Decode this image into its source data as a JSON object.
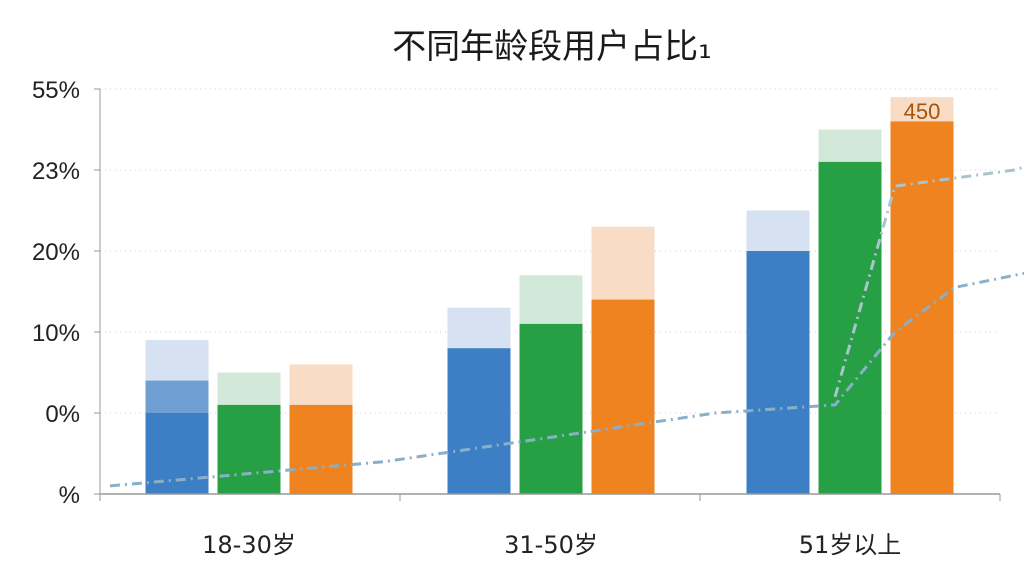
{
  "chart_data": {
    "type": "bar",
    "title": "不同年龄段用户占比₁",
    "xlabel": "",
    "ylabel": "",
    "y_tick_labels": [
      "%",
      "0%",
      "10%",
      "20%",
      "23%",
      "55%"
    ],
    "categories": [
      "18-30岁",
      "31-50岁",
      "51岁以上"
    ],
    "grid": true,
    "legend": "none",
    "series": [
      {
        "color": "#3d7fc4",
        "light_color": "#d6e2f1",
        "values": [
          10,
          18,
          30
        ],
        "stacked_light": [
          19,
          23,
          35
        ]
      },
      {
        "color": "#27a045",
        "light_color": "#d2e8d8",
        "values": [
          11,
          21,
          41
        ],
        "stacked_light": [
          15,
          27,
          45
        ]
      },
      {
        "color": "#ee8320",
        "light_color": "#f9dcc6",
        "values": [
          11,
          24,
          46
        ],
        "stacked_light": [
          16,
          33,
          49
        ]
      }
    ],
    "first_bar_mid_value": 14,
    "data_labels": [
      {
        "series": 2,
        "category": 2,
        "text": "450"
      }
    ],
    "trend_line": {
      "style": "dash-dot",
      "color": "#8ab0c8",
      "points": [
        [
          0.0,
          1
        ],
        [
          0.45,
          4
        ],
        [
          1.0,
          7
        ],
        [
          1.55,
          10
        ],
        [
          1.95,
          11
        ],
        [
          2.15,
          20
        ],
        [
          2.35,
          25.5
        ],
        [
          2.95,
          30
        ]
      ]
    },
    "trend_line_2": {
      "style": "dash-dot",
      "color": "#a8c4cc",
      "points": [
        [
          1.95,
          12
        ],
        [
          2.15,
          38
        ],
        [
          2.55,
          40
        ],
        [
          2.95,
          44.5
        ]
      ]
    },
    "ylim": [
      0,
      50
    ]
  }
}
